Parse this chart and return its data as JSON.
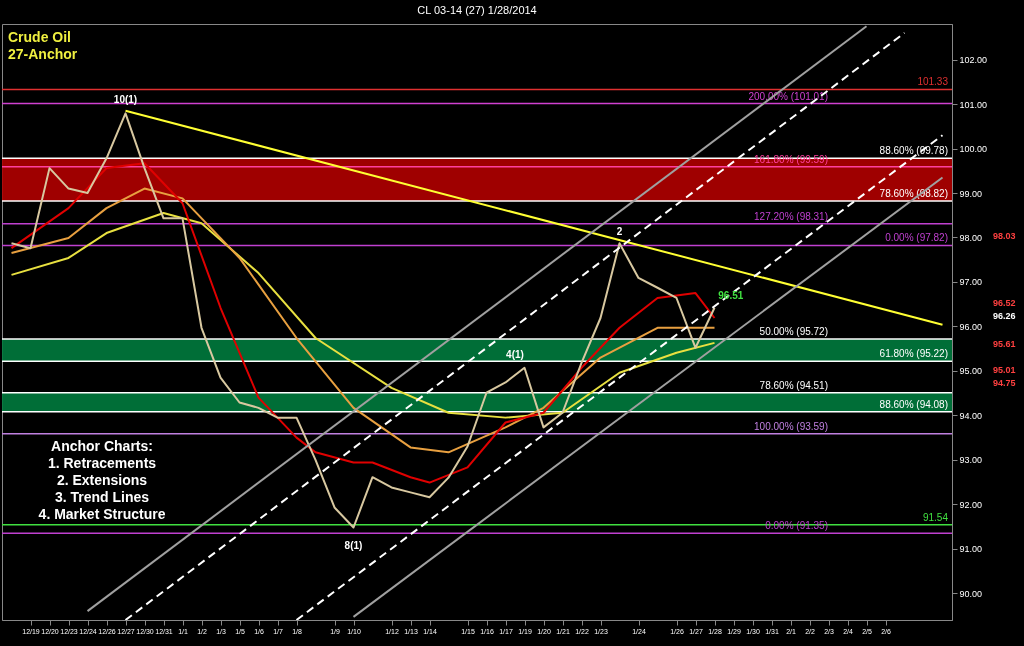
{
  "chart_data": {
    "type": "line",
    "title": "CL 03-14 (27) 1/28/2014",
    "categories": [
      null,
      "12/19",
      "12/20",
      "12/23",
      "12/24",
      "12/26",
      "12/27",
      "12/30",
      "12/31",
      "1/1",
      "1/2",
      "1/3",
      "1/5",
      "1/6",
      "1/7",
      "1/8",
      null,
      "1/9",
      "1/10",
      null,
      "1/12",
      "1/13",
      "1/14",
      null,
      "1/15",
      "1/16",
      "1/17",
      "1/19",
      "1/20",
      "1/21",
      "1/22",
      "1/23",
      null,
      "1/24",
      null,
      "1/26",
      "1/27",
      "1/28",
      "1/29",
      "1/30",
      "1/31",
      "2/1",
      "2/2",
      "2/3",
      "2/4",
      "2/5",
      "2/6",
      null,
      null,
      null
    ],
    "ylim": [
      89.4,
      102.8
    ],
    "yticks": [
      {
        "value": 90,
        "label": "90.00"
      },
      {
        "value": 91,
        "label": "91.00"
      },
      {
        "value": 92,
        "label": "92.00"
      },
      {
        "value": 93,
        "label": "93.00"
      },
      {
        "value": 94,
        "label": "94.00"
      },
      {
        "value": 95,
        "label": "95.00"
      },
      {
        "value": 96,
        "label": "96.00"
      },
      {
        "value": 97,
        "label": "97.00"
      },
      {
        "value": 98,
        "label": "98.00"
      },
      {
        "value": 99,
        "label": "99.00"
      },
      {
        "value": 100,
        "label": "100.00"
      },
      {
        "value": 101,
        "label": "101.00"
      },
      {
        "value": 102,
        "label": "102.00"
      }
    ],
    "series": [
      {
        "color": "#e8e040",
        "values": [
          97.16,
          null,
          null,
          97.54,
          null,
          98.1,
          null,
          null,
          98.55,
          null,
          98.32,
          null,
          null,
          97.2,
          null,
          null,
          95.74,
          null,
          null,
          null,
          94.62,
          null,
          null,
          94.06,
          null,
          null,
          93.95,
          null,
          null,
          94.06,
          null,
          null,
          94.96,
          null,
          null,
          95.41,
          null,
          95.63,
          null,
          null,
          null,
          null,
          null,
          null,
          null,
          null,
          null,
          null,
          null,
          null
        ]
      },
      {
        "color": "#e8a040",
        "values": [
          97.65,
          null,
          null,
          97.99,
          null,
          98.66,
          null,
          99.1,
          null,
          98.88,
          null,
          null,
          97.54,
          null,
          null,
          95.74,
          null,
          null,
          94.17,
          null,
          null,
          93.28,
          null,
          93.17,
          null,
          null,
          93.73,
          null,
          94.17,
          null,
          null,
          95.3,
          null,
          null,
          95.97,
          null,
          null,
          95.97,
          null,
          null,
          null,
          null,
          null,
          null,
          null,
          null,
          null,
          null,
          null,
          null
        ]
      },
      {
        "color": "#e00000",
        "values": [
          97.76,
          null,
          null,
          98.66,
          null,
          99.56,
          null,
          99.67,
          99.22,
          98.77,
          null,
          96.42,
          null,
          94.4,
          null,
          93.5,
          93.17,
          null,
          92.94,
          92.94,
          null,
          92.61,
          92.49,
          null,
          92.83,
          null,
          93.84,
          null,
          94.06,
          null,
          95.07,
          null,
          95.97,
          null,
          96.64,
          null,
          96.75,
          96.19,
          null,
          null,
          null,
          null,
          null,
          null,
          null,
          null,
          null,
          null,
          null,
          null
        ]
      },
      {
        "color": "#d8c8a0",
        "values": [
          97.87,
          97.76,
          99.56,
          99.1,
          99.0,
          99.78,
          100.79,
          99.56,
          98.43,
          98.43,
          95.97,
          94.85,
          94.29,
          94.17,
          93.95,
          93.95,
          93.0,
          91.93,
          91.48,
          92.61,
          92.38,
          92.27,
          92.16,
          92.6,
          93.3,
          94.51,
          94.74,
          95.07,
          93.73,
          94.06,
          95.18,
          96.19,
          97.87,
          97.09,
          96.87,
          96.64,
          95.52,
          96.42,
          null,
          null,
          null,
          null,
          null,
          null,
          null,
          null,
          null,
          null,
          null,
          null
        ]
      },
      {
        "color": "#ffff33",
        "values": [
          null,
          null,
          null,
          null,
          null,
          null,
          100.85,
          null,
          null,
          null,
          null,
          null,
          null,
          null,
          null,
          null,
          null,
          null,
          null,
          null,
          null,
          null,
          null,
          null,
          null,
          null,
          null,
          null,
          null,
          null,
          null,
          null,
          null,
          null,
          null,
          null,
          null,
          null,
          null,
          null,
          null,
          null,
          null,
          null,
          null,
          null,
          null,
          null,
          null,
          96.04
        ]
      },
      {
        "color": "#ffffff",
        "line_style": "dashed",
        "values": [
          null,
          null,
          null,
          null,
          null,
          null,
          89.4,
          null,
          null,
          null,
          null,
          null,
          null,
          null,
          null,
          null,
          null,
          null,
          null,
          null,
          null,
          null,
          null,
          null,
          null,
          null,
          null,
          null,
          null,
          null,
          null,
          null,
          null,
          null,
          null,
          null,
          null,
          null,
          null,
          null,
          null,
          null,
          null,
          null,
          null,
          null,
          null,
          102.6,
          null,
          null
        ]
      },
      {
        "color": "#ffffff",
        "line_style": "dashed",
        "values": [
          null,
          null,
          null,
          null,
          null,
          null,
          null,
          null,
          null,
          null,
          null,
          null,
          null,
          null,
          null,
          89.4,
          null,
          null,
          null,
          null,
          null,
          null,
          null,
          null,
          null,
          null,
          null,
          null,
          null,
          null,
          null,
          null,
          null,
          null,
          null,
          null,
          null,
          null,
          null,
          null,
          null,
          null,
          null,
          null,
          null,
          null,
          null,
          null,
          null,
          100.3
        ]
      },
      {
        "color": "#a0a0a0",
        "values": [
          null,
          null,
          null,
          null,
          89.6,
          null,
          null,
          null,
          null,
          null,
          null,
          null,
          null,
          null,
          null,
          null,
          null,
          null,
          null,
          null,
          null,
          null,
          null,
          null,
          null,
          null,
          null,
          null,
          null,
          null,
          null,
          null,
          null,
          null,
          null,
          null,
          null,
          null,
          null,
          null,
          null,
          null,
          null,
          null,
          null,
          102.75,
          null,
          null,
          null,
          null
        ]
      },
      {
        "color": "#a0a0a0",
        "values": [
          null,
          null,
          null,
          null,
          null,
          null,
          null,
          null,
          null,
          null,
          null,
          null,
          null,
          null,
          null,
          null,
          null,
          null,
          89.47,
          null,
          null,
          null,
          null,
          null,
          null,
          null,
          null,
          null,
          null,
          null,
          null,
          null,
          null,
          null,
          null,
          null,
          null,
          null,
          null,
          null,
          null,
          null,
          null,
          null,
          null,
          null,
          null,
          null,
          null,
          99.35
        ]
      }
    ],
    "bands": [
      {
        "axis": "y",
        "from": 98.82,
        "to": 99.78,
        "color": "#b00000"
      },
      {
        "axis": "y",
        "from": 95.22,
        "to": 95.72,
        "color": "#007a3d"
      },
      {
        "axis": "y",
        "from": 94.08,
        "to": 94.51,
        "color": "#007a3d"
      }
    ],
    "ref_lines": [
      {
        "axis": "y",
        "value": 101.33,
        "label": "101.33",
        "color": "#e03030"
      },
      {
        "axis": "y",
        "value": 101.01,
        "label": "200.00% (101.01)",
        "color": "#d040d0"
      },
      {
        "axis": "y",
        "value": 99.78,
        "label": "88.60% (99.78)",
        "color": "#ffffff"
      },
      {
        "axis": "y",
        "value": 99.59,
        "label": "161.80% (99.59)",
        "color": "#ff40a0"
      },
      {
        "axis": "y",
        "value": 98.82,
        "label": "78.60% (98.82)",
        "color": "#ffffff"
      },
      {
        "axis": "y",
        "value": 98.31,
        "label": "127.20% (98.31)",
        "color": "#c040d0"
      },
      {
        "axis": "y",
        "value": 97.82,
        "label": "0.00% (97.82)",
        "color": "#c040d0"
      },
      {
        "axis": "y",
        "value": 95.72,
        "label": "50.00% (95.72)",
        "color": "#ffffff"
      },
      {
        "axis": "y",
        "value": 95.22,
        "label": "61.80% (95.22)",
        "color": "#ffffff"
      },
      {
        "axis": "y",
        "value": 94.51,
        "label": "78.60% (94.51)",
        "color": "#ffffff"
      },
      {
        "axis": "y",
        "value": 94.08,
        "label": "88.60% (94.08)",
        "color": "#ffffff"
      },
      {
        "axis": "y",
        "value": 93.59,
        "label": "100.00% (93.59)",
        "color": "#c080e0"
      },
      {
        "axis": "y",
        "value": 91.54,
        "label": "91.54",
        "color": "#40e040"
      },
      {
        "axis": "y",
        "value": 91.35,
        "label": "0.00% (91.35)",
        "color": "#c040d0"
      }
    ],
    "annotations": [
      "Crude Oil",
      "27-Anchor",
      "Anchor Charts:",
      "1.  Retracements",
      "2.  Extensions",
      "3.  Trend Lines",
      "4.  Market Structure",
      "10(1)",
      "8(1)",
      "4(1)",
      "2",
      "96.51",
      "98.03",
      "96.52",
      "96.26",
      "95.61",
      "95.01",
      "94.75"
    ]
  }
}
